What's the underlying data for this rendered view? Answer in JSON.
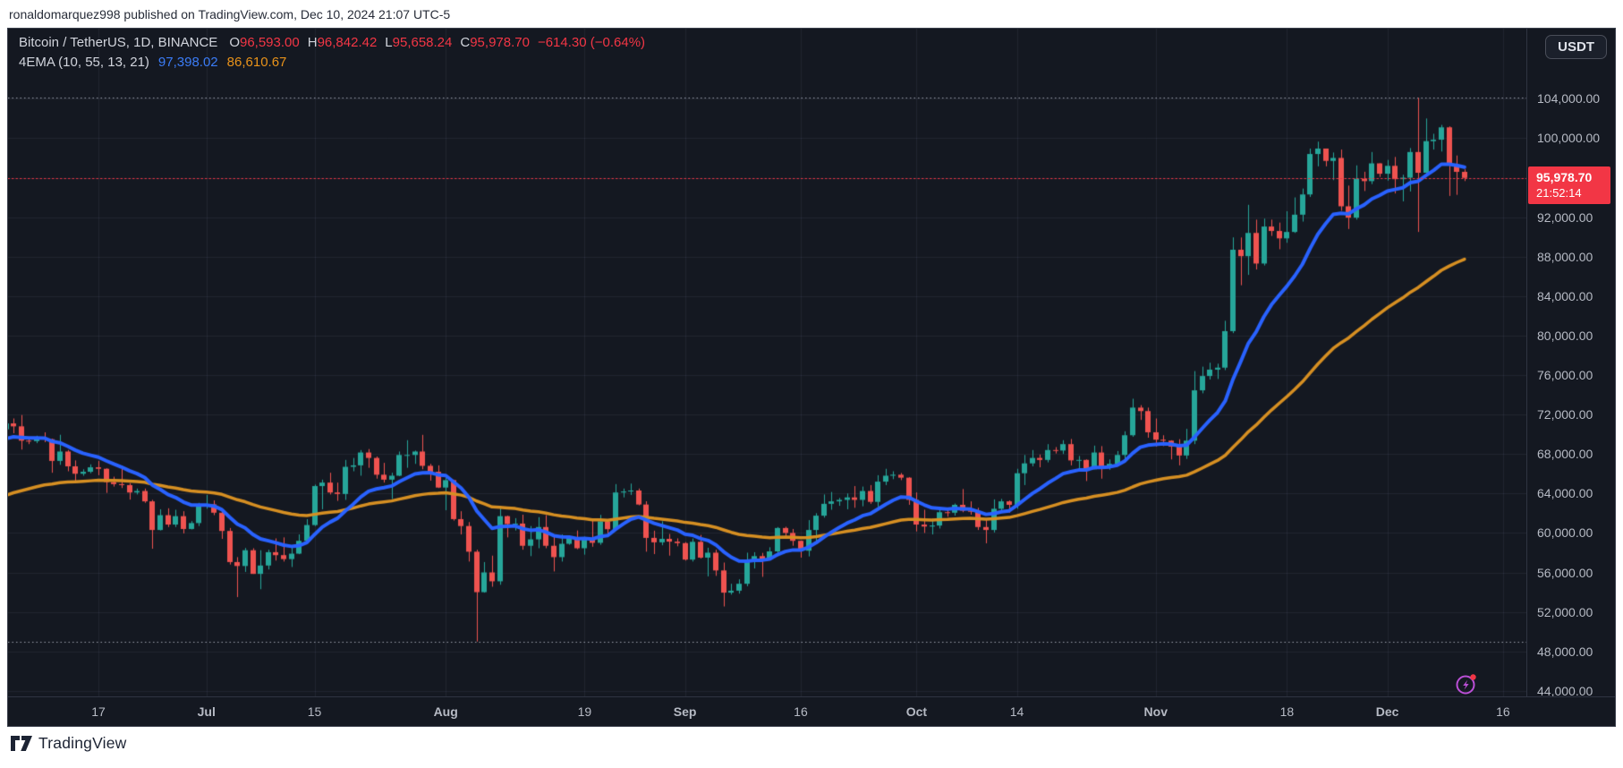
{
  "attribution": "ronaldomarquez998 published on TradingView.com, Dec 10, 2024 21:07 UTC-5",
  "header": {
    "symbol": "Bitcoin / TetherUS, 1D, BINANCE",
    "ohlc": [
      {
        "label": "O",
        "value": "96,593.00"
      },
      {
        "label": "H",
        "value": "96,842.42"
      },
      {
        "label": "L",
        "value": "95,658.24"
      },
      {
        "label": "C",
        "value": "95,978.70"
      }
    ],
    "change": "−614.30 (−0.64%)",
    "indicator": {
      "name": "4EMA (10, 55, 13, 21)",
      "fast": "97,398.02",
      "slow": "86,610.67"
    }
  },
  "currency_button": {
    "label": "USDT"
  },
  "price_badge": {
    "price": "95,978.70",
    "countdown": "21:52:14",
    "value": 95978.7
  },
  "logo": {
    "text": "TradingView"
  },
  "icons": {
    "bottom_right": "flash-lightning-icon",
    "bottom_left": "tradingview-logo"
  },
  "colors": {
    "background": "#141821",
    "up": "#26a69a",
    "down": "#ef5350",
    "ema_fast": "#2962ff",
    "ema_slow": "#d68f22",
    "grid": "rgba(170,180,205,0.09)",
    "axis_text": "#b6bac4",
    "badge": "#f23645",
    "current_price_line": "#f23645",
    "extreme_line": "#9ba0ac"
  },
  "price_axis": {
    "labels": [
      {
        "text": "104,000.00",
        "value": 104000
      },
      {
        "text": "100,000.00",
        "value": 100000
      },
      {
        "text": "96,000.00",
        "value": 96000
      },
      {
        "text": "92,000.00",
        "value": 92000
      },
      {
        "text": "88,000.00",
        "value": 88000
      },
      {
        "text": "84,000.00",
        "value": 84000
      },
      {
        "text": "80,000.00",
        "value": 80000
      },
      {
        "text": "76,000.00",
        "value": 76000
      },
      {
        "text": "72,000.00",
        "value": 72000
      },
      {
        "text": "68,000.00",
        "value": 68000
      },
      {
        "text": "64,000.00",
        "value": 64000
      },
      {
        "text": "60,000.00",
        "value": 60000
      },
      {
        "text": "56,000.00",
        "value": 56000
      },
      {
        "text": "52,000.00",
        "value": 52000
      },
      {
        "text": "48,000.00",
        "value": 48000
      },
      {
        "text": "44,000.00",
        "value": 44000
      }
    ]
  },
  "time_axis": {
    "labels": [
      {
        "text": "17",
        "i": 12
      },
      {
        "text": "Jul",
        "i": 26,
        "bold": true
      },
      {
        "text": "15",
        "i": 40
      },
      {
        "text": "Aug",
        "i": 57,
        "bold": true
      },
      {
        "text": "19",
        "i": 75
      },
      {
        "text": "Sep",
        "i": 88,
        "bold": true
      },
      {
        "text": "16",
        "i": 103
      },
      {
        "text": "Oct",
        "i": 118,
        "bold": true
      },
      {
        "text": "14",
        "i": 131
      },
      {
        "text": "Nov",
        "i": 149,
        "bold": true
      },
      {
        "text": "18",
        "i": 166
      },
      {
        "text": "Dec",
        "i": 179,
        "bold": true
      },
      {
        "text": "16",
        "i": 194
      }
    ]
  },
  "chart_data": {
    "type": "candlestick",
    "title": "Bitcoin / TetherUS, 1D, BINANCE",
    "symbol": "BTCUSDT",
    "exchange": "BINANCE",
    "interval": "1D",
    "start_date": "2024-06-05",
    "end_date": "2024-12-11",
    "ylim": [
      43400,
      111100
    ],
    "high_line": 104088,
    "low_line": 49000,
    "last_candle": {
      "open": 96593.0,
      "high": 96842.42,
      "low": 95658.24,
      "close": 95978.7,
      "change": -614.3,
      "change_pct": -0.64
    },
    "overlays": [
      {
        "name": "EMA fast (10/13/21 composite)",
        "period": 13,
        "seed": 69300,
        "color": "#2962ff",
        "width": 4,
        "last_value": 97398.02
      },
      {
        "name": "EMA 55",
        "period": 50,
        "seed": 63500,
        "color": "#d68f22",
        "width": 3.5,
        "last_value": 86610.67
      }
    ],
    "candles": [
      [
        70500,
        71700,
        70400,
        71100
      ],
      [
        71100,
        71600,
        70100,
        70800
      ],
      [
        70800,
        71950,
        68450,
        69350
      ],
      [
        69350,
        69550,
        69000,
        69300
      ],
      [
        69300,
        69850,
        69100,
        69650
      ],
      [
        69650,
        70200,
        69200,
        69500
      ],
      [
        69500,
        69550,
        66100,
        67300
      ],
      [
        67300,
        69950,
        66900,
        68250
      ],
      [
        68250,
        68400,
        66250,
        66750
      ],
      [
        66750,
        67350,
        65050,
        66000
      ],
      [
        66000,
        66450,
        65800,
        66200
      ],
      [
        66200,
        66950,
        66050,
        66650
      ],
      [
        66650,
        67300,
        65850,
        66500
      ],
      [
        66500,
        66550,
        64060,
        65150
      ],
      [
        65150,
        65700,
        64700,
        64950
      ],
      [
        64950,
        66480,
        64550,
        64850
      ],
      [
        64850,
        65050,
        63380,
        64100
      ],
      [
        64100,
        64500,
        63900,
        64250
      ],
      [
        64250,
        64500,
        63050,
        63200
      ],
      [
        63200,
        63350,
        58400,
        60300
      ],
      [
        60300,
        62400,
        60250,
        61800
      ],
      [
        61800,
        62500,
        60600,
        60850
      ],
      [
        60850,
        62350,
        60600,
        61700
      ],
      [
        61700,
        62200,
        59950,
        60400
      ],
      [
        60400,
        61200,
        60350,
        61000
      ],
      [
        61000,
        63050,
        60700,
        62750
      ],
      [
        62750,
        63850,
        62450,
        62900
      ],
      [
        62900,
        63300,
        61800,
        62050
      ],
      [
        62050,
        62250,
        59400,
        60200
      ],
      [
        60200,
        60500,
        56800,
        57050
      ],
      [
        57050,
        57550,
        53500,
        56650
      ],
      [
        56650,
        58475,
        56050,
        58250
      ],
      [
        58250,
        58450,
        55850,
        55850
      ],
      [
        55850,
        58250,
        54300,
        56700
      ],
      [
        56700,
        58300,
        56300,
        58050
      ],
      [
        58050,
        59450,
        57200,
        57750
      ],
      [
        57750,
        59550,
        57100,
        57350
      ],
      [
        57350,
        58500,
        56550,
        57900
      ],
      [
        57900,
        59850,
        57850,
        59200
      ],
      [
        59200,
        61400,
        59200,
        60800
      ],
      [
        60800,
        64900,
        60700,
        64750
      ],
      [
        64750,
        65400,
        62400,
        65100
      ],
      [
        65100,
        66100,
        63900,
        64100
      ],
      [
        64100,
        65100,
        63250,
        63950
      ],
      [
        63950,
        67400,
        63350,
        66700
      ],
      [
        66700,
        67600,
        66250,
        66850
      ],
      [
        66850,
        68400,
        65800,
        68150
      ],
      [
        68150,
        68500,
        66600,
        67600
      ],
      [
        67600,
        67750,
        65500,
        65900
      ],
      [
        65900,
        67100,
        65100,
        65400
      ],
      [
        65400,
        66100,
        63450,
        65800
      ],
      [
        65800,
        68250,
        65750,
        67900
      ],
      [
        67900,
        69400,
        66600,
        67900
      ],
      [
        67900,
        68350,
        67000,
        68250
      ],
      [
        68250,
        69940,
        66450,
        66800
      ],
      [
        66800,
        67000,
        65300,
        66200
      ],
      [
        66200,
        66850,
        64550,
        64600
      ],
      [
        64600,
        65600,
        62300,
        65350
      ],
      [
        65350,
        65400,
        61250,
        61400
      ],
      [
        61400,
        62200,
        59850,
        60700
      ],
      [
        60700,
        61100,
        57100,
        58100
      ],
      [
        58100,
        58300,
        49000,
        54000
      ],
      [
        54000,
        57050,
        53950,
        56000
      ],
      [
        56000,
        57700,
        54550,
        55100
      ],
      [
        55100,
        62750,
        54750,
        61700
      ],
      [
        61700,
        61750,
        59550,
        60900
      ],
      [
        60900,
        61500,
        60250,
        60950
      ],
      [
        60950,
        61850,
        58300,
        58700
      ],
      [
        58700,
        60700,
        57650,
        59350
      ],
      [
        59350,
        61600,
        58450,
        60600
      ],
      [
        60600,
        61800,
        58450,
        58700
      ],
      [
        58700,
        59850,
        56100,
        57550
      ],
      [
        57550,
        59850,
        57100,
        58900
      ],
      [
        58900,
        59700,
        58800,
        59500
      ],
      [
        59500,
        60250,
        58350,
        58450
      ],
      [
        58450,
        59620,
        57800,
        59500
      ],
      [
        59500,
        61400,
        58600,
        59000
      ],
      [
        59000,
        61830,
        58800,
        61170
      ],
      [
        61170,
        61400,
        59750,
        60380
      ],
      [
        60380,
        64950,
        60350,
        64100
      ],
      [
        64100,
        64500,
        63600,
        64200
      ],
      [
        64200,
        65000,
        63850,
        64300
      ],
      [
        64300,
        64500,
        62800,
        62880
      ],
      [
        62880,
        63210,
        58100,
        59500
      ],
      [
        59500,
        60230,
        57860,
        59050
      ],
      [
        59050,
        61180,
        58750,
        59400
      ],
      [
        59400,
        59900,
        57700,
        59120
      ],
      [
        59120,
        59450,
        58650,
        58970
      ],
      [
        58970,
        59070,
        57200,
        57300
      ],
      [
        57300,
        59435,
        57100,
        59100
      ],
      [
        59100,
        59800,
        57400,
        57500
      ],
      [
        57500,
        58500,
        55600,
        58000
      ],
      [
        58000,
        58300,
        55650,
        56200
      ],
      [
        56200,
        57000,
        52550,
        53950
      ],
      [
        53950,
        54850,
        53750,
        54150
      ],
      [
        54150,
        55300,
        53850,
        54850
      ],
      [
        54850,
        58000,
        54600,
        57050
      ],
      [
        57050,
        58050,
        56400,
        57650
      ],
      [
        57650,
        57980,
        55550,
        57350
      ],
      [
        57350,
        58550,
        57300,
        58130
      ],
      [
        58130,
        60600,
        57650,
        60500
      ],
      [
        60500,
        60630,
        59450,
        60000
      ],
      [
        60000,
        60400,
        58700,
        59200
      ],
      [
        59200,
        59230,
        57500,
        58200
      ],
      [
        58200,
        61300,
        57620,
        60300
      ],
      [
        60300,
        62000,
        59180,
        61750
      ],
      [
        61750,
        63900,
        61550,
        62950
      ],
      [
        62950,
        64150,
        62350,
        63200
      ],
      [
        63200,
        63550,
        62750,
        63350
      ],
      [
        63350,
        64000,
        62400,
        63600
      ],
      [
        63600,
        64750,
        62550,
        63350
      ],
      [
        63350,
        64700,
        62700,
        64250
      ],
      [
        64250,
        64850,
        62950,
        63150
      ],
      [
        63150,
        65850,
        62650,
        65200
      ],
      [
        65200,
        66500,
        64850,
        65800
      ],
      [
        65800,
        66250,
        65450,
        65900
      ],
      [
        65900,
        66075,
        65350,
        65600
      ],
      [
        65600,
        65650,
        62850,
        63350
      ],
      [
        63350,
        64100,
        60150,
        60850
      ],
      [
        60850,
        62350,
        60000,
        60650
      ],
      [
        60650,
        61450,
        59850,
        60750
      ],
      [
        60750,
        62450,
        60450,
        62100
      ],
      [
        62100,
        62350,
        61650,
        62050
      ],
      [
        62050,
        62980,
        61750,
        62850
      ],
      [
        62850,
        64450,
        62100,
        62250
      ],
      [
        62250,
        63200,
        61850,
        62150
      ],
      [
        62150,
        62550,
        60300,
        60600
      ],
      [
        60600,
        61300,
        58950,
        60300
      ],
      [
        60300,
        63400,
        60050,
        62450
      ],
      [
        62450,
        63450,
        62050,
        63200
      ],
      [
        63200,
        63300,
        62050,
        62850
      ],
      [
        62850,
        66500,
        62450,
        66050
      ],
      [
        66050,
        67900,
        64850,
        67050
      ],
      [
        67050,
        68400,
        66750,
        67600
      ],
      [
        67600,
        67950,
        66650,
        67400
      ],
      [
        67400,
        69000,
        67150,
        68400
      ],
      [
        68400,
        68700,
        68050,
        68350
      ],
      [
        68350,
        69400,
        68000,
        69000
      ],
      [
        69000,
        69520,
        66850,
        67350
      ],
      [
        67350,
        67800,
        66550,
        67400
      ],
      [
        67400,
        67450,
        65260,
        66450
      ],
      [
        66450,
        68850,
        66450,
        68150
      ],
      [
        68150,
        68800,
        65500,
        66650
      ],
      [
        66650,
        67450,
        66400,
        67000
      ],
      [
        67000,
        68300,
        66900,
        67900
      ],
      [
        67900,
        70300,
        67550,
        69900
      ],
      [
        69900,
        73600,
        69750,
        72700
      ],
      [
        72700,
        72950,
        71450,
        72350
      ],
      [
        72350,
        72700,
        69650,
        70200
      ],
      [
        70200,
        71600,
        68750,
        69450
      ],
      [
        69450,
        69900,
        68800,
        69350
      ],
      [
        69350,
        69390,
        67450,
        68750
      ],
      [
        68750,
        69500,
        66850,
        67850
      ],
      [
        67850,
        70550,
        67500,
        69350
      ],
      [
        69350,
        76400,
        69000,
        74450
      ],
      [
        74450,
        76850,
        74150,
        75900
      ],
      [
        75900,
        77250,
        75550,
        76550
      ],
      [
        76550,
        77150,
        75600,
        76750
      ],
      [
        76750,
        81500,
        76500,
        80450
      ],
      [
        80450,
        89950,
        80250,
        88700
      ],
      [
        88700,
        89940,
        85100,
        88050
      ],
      [
        88050,
        93250,
        86150,
        90400
      ],
      [
        90400,
        91750,
        86700,
        87300
      ],
      [
        87300,
        91850,
        87100,
        91050
      ],
      [
        91050,
        91750,
        90100,
        90600
      ],
      [
        90600,
        91450,
        88750,
        89850
      ],
      [
        89850,
        92600,
        89400,
        90500
      ],
      [
        90500,
        94000,
        90400,
        92250
      ],
      [
        92250,
        94900,
        91550,
        94300
      ],
      [
        94300,
        98950,
        94050,
        98400
      ],
      [
        98400,
        99650,
        97150,
        98950
      ],
      [
        98950,
        98950,
        97150,
        97700
      ],
      [
        97700,
        98550,
        95750,
        98000
      ],
      [
        98000,
        98850,
        92650,
        93100
      ],
      [
        93100,
        95200,
        90800,
        91950
      ],
      [
        91950,
        97250,
        91750,
        95900
      ],
      [
        95900,
        96600,
        94650,
        95650
      ],
      [
        95650,
        98600,
        95350,
        97450
      ],
      [
        97450,
        97460,
        96070,
        96400
      ],
      [
        96400,
        97800,
        95700,
        97200
      ],
      [
        97200,
        98100,
        94400,
        95850
      ],
      [
        95850,
        96300,
        93600,
        96000
      ],
      [
        96000,
        99000,
        94600,
        98600
      ],
      [
        98600,
        104088,
        90500,
        96500
      ],
      [
        96500,
        102000,
        96400,
        99700
      ],
      [
        99700,
        100450,
        98850,
        99850
      ],
      [
        99850,
        101350,
        98650,
        101100
      ],
      [
        101100,
        101200,
        94150,
        97300
      ],
      [
        97300,
        98250,
        94260,
        96593
      ],
      [
        96593,
        96842,
        95658,
        95978.7
      ]
    ]
  }
}
